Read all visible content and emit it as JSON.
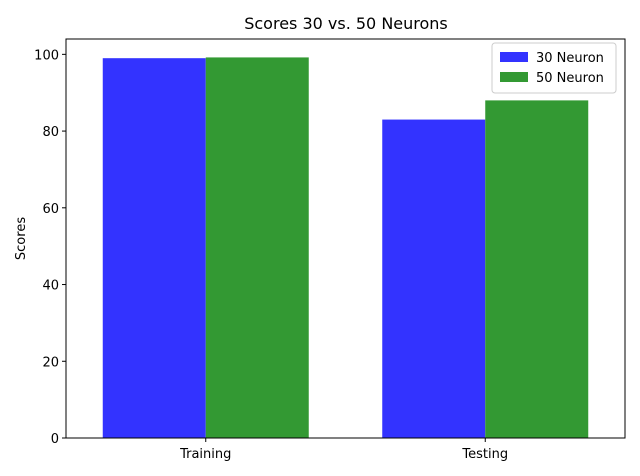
{
  "chart_data": {
    "type": "bar",
    "title": "Scores 30 vs. 50 Neurons",
    "xlabel": "",
    "ylabel": "Scores",
    "categories": [
      "Training",
      "Testing"
    ],
    "series": [
      {
        "name": "30 Neuron",
        "values": [
          99.0,
          83.0
        ],
        "color": "#3333ff"
      },
      {
        "name": "50 Neuron",
        "values": [
          99.2,
          88.0
        ],
        "color": "#339933"
      }
    ],
    "ylim": [
      0,
      104
    ],
    "yticks": [
      0,
      20,
      40,
      60,
      80,
      100
    ],
    "grid": false,
    "legend_position": "top-right"
  }
}
